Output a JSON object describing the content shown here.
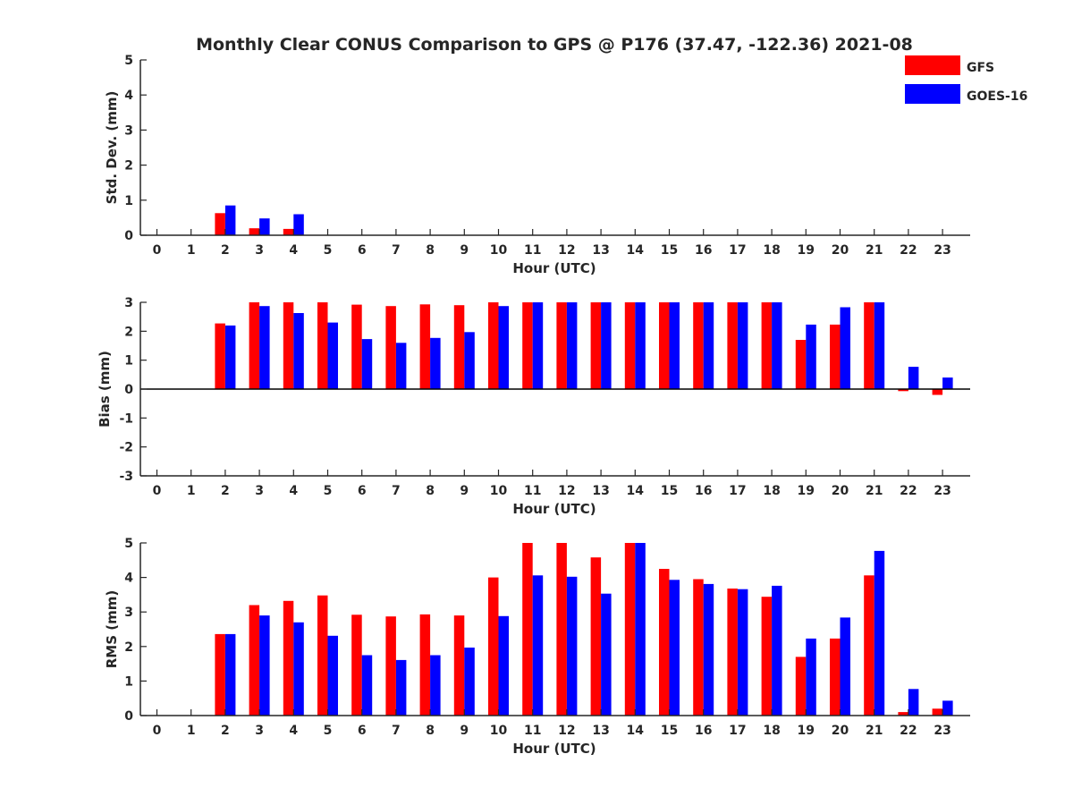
{
  "title": "Monthly Clear CONUS Comparison to GPS @ P176 (37.47, -122.36) 2021-08",
  "legend": {
    "placement": "top-right",
    "entries": [
      {
        "label": "GFS",
        "color": "#ff0000"
      },
      {
        "label": "GOES-16",
        "color": "#0000ff"
      }
    ]
  },
  "chart_data": [
    {
      "type": "bar",
      "categories": [
        "0",
        "1",
        "2",
        "3",
        "4",
        "5",
        "6",
        "7",
        "8",
        "9",
        "10",
        "11",
        "12",
        "13",
        "14",
        "15",
        "16",
        "17",
        "18",
        "19",
        "20",
        "21",
        "22",
        "23"
      ],
      "xlabel": "Hour (UTC)",
      "ylabel": "Std. Dev. (mm)",
      "ylim": [
        0,
        5
      ],
      "yticks": [
        "0",
        "1",
        "2",
        "3",
        "4",
        "5"
      ],
      "grid": false,
      "series": [
        {
          "name": "GFS",
          "color": "#ff0000",
          "values": [
            null,
            null,
            0.63,
            0.2,
            0.18,
            null,
            null,
            null,
            null,
            null,
            null,
            null,
            null,
            null,
            null,
            null,
            null,
            null,
            null,
            null,
            null,
            null,
            null,
            null
          ]
        },
        {
          "name": "GOES-16",
          "color": "#0000ff",
          "values": [
            null,
            null,
            0.85,
            0.48,
            0.6,
            null,
            null,
            null,
            null,
            null,
            null,
            null,
            null,
            null,
            null,
            null,
            null,
            null,
            null,
            null,
            null,
            null,
            null,
            null
          ]
        }
      ]
    },
    {
      "type": "bar",
      "categories": [
        "0",
        "1",
        "2",
        "3",
        "4",
        "5",
        "6",
        "7",
        "8",
        "9",
        "10",
        "11",
        "12",
        "13",
        "14",
        "15",
        "16",
        "17",
        "18",
        "19",
        "20",
        "21",
        "22",
        "23"
      ],
      "xlabel": "Hour (UTC)",
      "ylabel": "Bias (mm)",
      "ylim": [
        -3,
        3
      ],
      "yticks": [
        "-3",
        "-2",
        "-1",
        "0",
        "1",
        "2",
        "3"
      ],
      "grid": false,
      "series": [
        {
          "name": "GFS",
          "color": "#ff0000",
          "values": [
            null,
            null,
            2.27,
            3.0,
            3.0,
            3.0,
            2.92,
            2.87,
            2.93,
            2.9,
            3.0,
            3.0,
            3.0,
            3.0,
            3.0,
            3.0,
            3.0,
            3.0,
            3.0,
            1.7,
            2.23,
            3.0,
            -0.07,
            -0.2
          ]
        },
        {
          "name": "GOES-16",
          "color": "#0000ff",
          "values": [
            null,
            null,
            2.2,
            2.87,
            2.63,
            2.3,
            1.73,
            1.6,
            1.77,
            1.97,
            2.87,
            3.0,
            3.0,
            3.0,
            3.0,
            3.0,
            3.0,
            3.0,
            3.0,
            2.23,
            2.83,
            3.0,
            0.77,
            0.4
          ]
        }
      ]
    },
    {
      "type": "bar",
      "categories": [
        "0",
        "1",
        "2",
        "3",
        "4",
        "5",
        "6",
        "7",
        "8",
        "9",
        "10",
        "11",
        "12",
        "13",
        "14",
        "15",
        "16",
        "17",
        "18",
        "19",
        "20",
        "21",
        "22",
        "23"
      ],
      "xlabel": "Hour (UTC)",
      "ylabel": "RMS (mm)",
      "ylim": [
        0,
        5
      ],
      "yticks": [
        "0",
        "1",
        "2",
        "3",
        "4",
        "5"
      ],
      "grid": false,
      "series": [
        {
          "name": "GFS",
          "color": "#ff0000",
          "values": [
            null,
            null,
            2.36,
            3.2,
            3.32,
            3.48,
            2.92,
            2.87,
            2.93,
            2.9,
            4.0,
            5.0,
            5.0,
            4.58,
            5.0,
            4.25,
            3.95,
            3.68,
            3.44,
            1.7,
            2.23,
            4.06,
            0.1,
            0.2
          ]
        },
        {
          "name": "GOES-16",
          "color": "#0000ff",
          "values": [
            null,
            null,
            2.36,
            2.9,
            2.7,
            2.31,
            1.75,
            1.61,
            1.75,
            1.97,
            2.88,
            4.06,
            4.02,
            3.53,
            5.0,
            3.93,
            3.81,
            3.66,
            3.76,
            2.23,
            2.84,
            4.77,
            0.77,
            0.43
          ]
        }
      ]
    }
  ]
}
